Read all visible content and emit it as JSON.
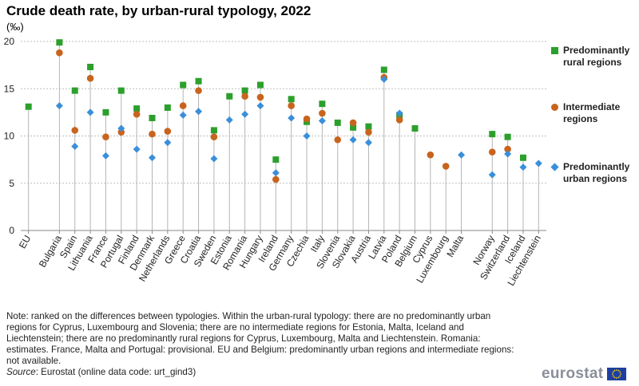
{
  "title": "Crude death rate, by urban-rural typology, 2022",
  "unit": "(‰)",
  "colors": {
    "rural": "#2ca02c",
    "intermediate": "#c8641e",
    "urban": "#3a8fd9",
    "grid": "#bdbdbd",
    "stem": "#b5b5b5"
  },
  "chart_data": {
    "type": "scatter",
    "title": "Crude death rate, by urban-rural typology, 2022",
    "ylabel": "(‰)",
    "ylim": [
      0,
      20
    ],
    "yticks": [
      0,
      5,
      10,
      15,
      20
    ],
    "categories": [
      "EU",
      "Bulgaria",
      "Spain",
      "Lithuania",
      "France",
      "Portugal",
      "Finland",
      "Denmark",
      "Netherlands",
      "Greece",
      "Croatia",
      "Sweden",
      "Estonia",
      "Romania",
      "Hungary",
      "Ireland",
      "Germany",
      "Czechia",
      "Italy",
      "Slovenia",
      "Slovakia",
      "Austria",
      "Latvia",
      "Poland",
      "Belgium",
      "Cyprus",
      "Luxembourg",
      "Malta",
      "Norway",
      "Switzerland",
      "Iceland",
      "Liechtenstein"
    ],
    "gaps_after": [
      "EU",
      "Malta"
    ],
    "series": [
      {
        "name": "Predominantly rural regions",
        "marker": "square",
        "values": [
          13.1,
          19.9,
          14.8,
          17.3,
          12.5,
          14.8,
          12.9,
          11.9,
          13.0,
          15.4,
          15.8,
          10.6,
          14.2,
          14.8,
          15.4,
          7.5,
          13.9,
          11.5,
          13.4,
          11.4,
          10.9,
          11.0,
          17.0,
          12.2,
          10.8,
          null,
          null,
          null,
          10.2,
          9.9,
          7.7,
          null
        ]
      },
      {
        "name": "Intermediate regions",
        "marker": "circle",
        "values": [
          null,
          18.8,
          10.6,
          16.1,
          9.9,
          10.4,
          12.3,
          10.2,
          10.5,
          13.2,
          14.8,
          9.9,
          null,
          14.2,
          14.1,
          5.4,
          13.2,
          11.8,
          12.4,
          9.6,
          11.4,
          10.4,
          16.2,
          11.7,
          null,
          8.0,
          6.8,
          null,
          8.3,
          8.6,
          null,
          null
        ]
      },
      {
        "name": "Predominantly urban regions",
        "marker": "diamond",
        "values": [
          null,
          13.2,
          8.9,
          12.5,
          7.9,
          10.8,
          8.6,
          7.7,
          9.3,
          12.2,
          12.6,
          7.6,
          11.7,
          12.3,
          13.2,
          6.1,
          11.9,
          10.0,
          11.6,
          null,
          9.6,
          9.3,
          16.0,
          12.4,
          null,
          null,
          null,
          8.0,
          5.9,
          8.1,
          6.7,
          7.1
        ]
      }
    ],
    "legend": "right"
  },
  "legend": [
    {
      "key": "rural",
      "label": "Predominantly rural regions"
    },
    {
      "key": "intermediate",
      "label": "Intermediate regions"
    },
    {
      "key": "urban",
      "label": "Predominantly urban regions"
    }
  ],
  "note": "Note: ranked on the differences between typologies. Within the urban-rural typology: there are no predominantly urban regions for Cyprus, Luxembourg and Slovenia; there are no intermediate regions for Estonia, Malta, Iceland and Liechtenstein; there are no predominantly rural regions for Cyprus, Luxembourg, Malta and Liechtenstein. Romania: estimates. France, Malta and Portugal: provisional. EU and Belgium: predominantly urban regions and intermediate regions: not available.",
  "source_label": "Source",
  "source_text": ": Eurostat (online data code: urt_gind3)",
  "logo_text": "eurostat"
}
